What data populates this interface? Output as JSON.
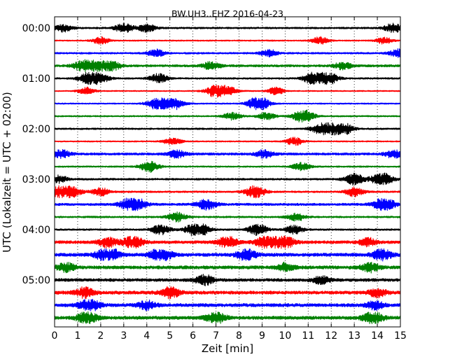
{
  "chart_data": {
    "type": "line",
    "title": "BW.UH3..EHZ 2016-04-23",
    "xlabel": "Zeit  [min]",
    "ylabel": "UTC (Lokalzeit = UTC + 02:00)",
    "xlim": [
      0,
      15
    ],
    "x_ticks": [
      "0",
      "1",
      "2",
      "3",
      "4",
      "5",
      "6",
      "7",
      "8",
      "9",
      "10",
      "11",
      "12",
      "13",
      "14",
      "15"
    ],
    "y_tick_labels": [
      "00:00",
      "01:00",
      "02:00",
      "03:00",
      "04:00",
      "05:00"
    ],
    "rows_per_hour": 4,
    "trace_colors": [
      "#000000",
      "#ff0000",
      "#0000ff",
      "#008000"
    ],
    "grid": "vertical dotted lines at each minute",
    "series": [
      {
        "start": "00:00",
        "noise": 0.3,
        "events": [
          [
            0.4,
            1.2
          ],
          [
            3.0,
            1.5
          ],
          [
            4.0,
            1.3
          ],
          [
            14.7,
            1.5
          ]
        ]
      },
      {
        "start": "00:15",
        "noise": 0.22,
        "events": [
          [
            2.0,
            1.2
          ],
          [
            11.5,
            1.2
          ],
          [
            14.3,
            1.1
          ]
        ]
      },
      {
        "start": "00:30",
        "noise": 0.3,
        "events": [
          [
            4.4,
            1.2
          ],
          [
            9.3,
            1.2
          ],
          [
            14.9,
            1.3
          ]
        ]
      },
      {
        "start": "00:45",
        "noise": 0.38,
        "events": [
          [
            1.2,
            1.6
          ],
          [
            1.8,
            1.8
          ],
          [
            2.5,
            1.5
          ],
          [
            6.8,
            1.3
          ],
          [
            12.5,
            1.2
          ]
        ]
      },
      {
        "start": "01:00",
        "noise": 0.28,
        "events": [
          [
            1.7,
            3.0
          ],
          [
            4.5,
            1.5
          ],
          [
            11.3,
            2.4
          ],
          [
            11.9,
            1.8
          ]
        ]
      },
      {
        "start": "01:15",
        "noise": 0.2,
        "events": [
          [
            1.4,
            1.2
          ],
          [
            7.2,
            3.2
          ],
          [
            9.6,
            1.2
          ]
        ]
      },
      {
        "start": "01:30",
        "noise": 0.22,
        "events": [
          [
            4.8,
            4.0
          ],
          [
            8.7,
            1.5
          ],
          [
            9.0,
            1.5
          ]
        ]
      },
      {
        "start": "01:45",
        "noise": 0.25,
        "events": [
          [
            7.7,
            1.2
          ],
          [
            9.2,
            1.2
          ],
          [
            10.8,
            2.2
          ]
        ]
      },
      {
        "start": "02:00",
        "noise": 0.28,
        "events": [
          [
            11.9,
            3.6
          ],
          [
            12.6,
            1.3
          ]
        ]
      },
      {
        "start": "02:15",
        "noise": 0.22,
        "events": [
          [
            5.1,
            1.3
          ],
          [
            10.4,
            1.3
          ]
        ]
      },
      {
        "start": "02:30",
        "noise": 0.4,
        "events": [
          [
            0.3,
            1.3
          ],
          [
            5.3,
            1.2
          ],
          [
            9.1,
            1.3
          ],
          [
            14.7,
            1.3
          ]
        ]
      },
      {
        "start": "02:45",
        "noise": 0.25,
        "events": [
          [
            4.1,
            1.8
          ],
          [
            10.7,
            1.3
          ]
        ]
      },
      {
        "start": "03:00",
        "noise": 0.32,
        "events": [
          [
            0.2,
            1.2
          ],
          [
            13.0,
            1.8
          ],
          [
            14.2,
            2.2
          ]
        ]
      },
      {
        "start": "03:15",
        "noise": 0.3,
        "events": [
          [
            0.5,
            3.2
          ],
          [
            2.0,
            1.3
          ],
          [
            8.7,
            2.0
          ],
          [
            13.0,
            1.5
          ]
        ]
      },
      {
        "start": "03:30",
        "noise": 0.4,
        "events": [
          [
            3.4,
            2.8
          ],
          [
            6.6,
            1.8
          ],
          [
            14.3,
            2.2
          ]
        ]
      },
      {
        "start": "03:45",
        "noise": 0.3,
        "events": [
          [
            5.3,
            1.5
          ],
          [
            10.5,
            1.3
          ]
        ]
      },
      {
        "start": "04:00",
        "noise": 0.3,
        "events": [
          [
            4.6,
            1.6
          ],
          [
            6.2,
            2.6
          ],
          [
            8.8,
            1.8
          ],
          [
            10.4,
            1.4
          ]
        ]
      },
      {
        "start": "04:15",
        "noise": 0.5,
        "events": [
          [
            2.3,
            1.6
          ],
          [
            3.4,
            2.0
          ],
          [
            7.5,
            1.8
          ],
          [
            9.4,
            3.2
          ],
          [
            10.1,
            1.3
          ],
          [
            13.6,
            1.3
          ]
        ]
      },
      {
        "start": "04:30",
        "noise": 0.55,
        "events": [
          [
            2.3,
            2.6
          ],
          [
            4.6,
            2.2
          ],
          [
            8.3,
            1.8
          ],
          [
            14.2,
            1.8
          ]
        ]
      },
      {
        "start": "04:45",
        "noise": 0.55,
        "events": [
          [
            0.5,
            1.4
          ],
          [
            10.0,
            1.3
          ],
          [
            13.7,
            1.4
          ]
        ]
      },
      {
        "start": "05:00",
        "noise": 0.5,
        "events": [
          [
            6.5,
            1.6
          ],
          [
            11.6,
            1.3
          ]
        ]
      },
      {
        "start": "05:15",
        "noise": 0.55,
        "events": [
          [
            1.3,
            1.6
          ],
          [
            5.0,
            1.9
          ],
          [
            14.0,
            1.4
          ]
        ]
      },
      {
        "start": "05:30",
        "noise": 0.55,
        "events": [
          [
            1.5,
            2.1
          ],
          [
            4.0,
            1.4
          ],
          [
            13.9,
            1.3
          ]
        ]
      },
      {
        "start": "05:45",
        "noise": 0.55,
        "events": [
          [
            1.4,
            1.9
          ],
          [
            7.0,
            1.8
          ],
          [
            13.8,
            2.0
          ]
        ]
      }
    ]
  }
}
